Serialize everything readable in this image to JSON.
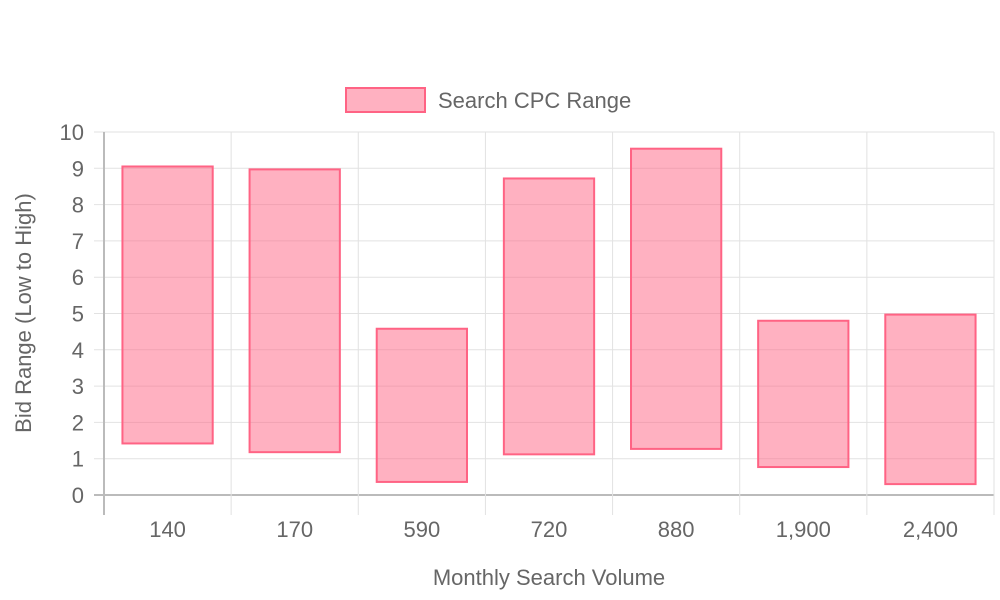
{
  "chart_data": {
    "type": "bar",
    "subtype": "floating-range",
    "categories": [
      "140",
      "170",
      "590",
      "720",
      "880",
      "1,900",
      "2,400"
    ],
    "series": [
      {
        "name": "Search CPC Range",
        "ranges": [
          [
            1.42,
            9.05
          ],
          [
            1.18,
            8.97
          ],
          [
            0.36,
            4.58
          ],
          [
            1.12,
            8.72
          ],
          [
            1.27,
            9.54
          ],
          [
            0.77,
            4.8
          ],
          [
            0.3,
            4.97
          ]
        ],
        "color": "#ff6384",
        "fill": "rgba(255,99,132,0.5)"
      }
    ],
    "title": "",
    "xlabel": "Monthly Search Volume",
    "ylabel": "Bid Range (Low to High)",
    "ylim": [
      0,
      10
    ],
    "yticks": [
      0,
      1,
      2,
      3,
      4,
      5,
      6,
      7,
      8,
      9,
      10
    ],
    "grid": true,
    "legend": "top-center"
  }
}
